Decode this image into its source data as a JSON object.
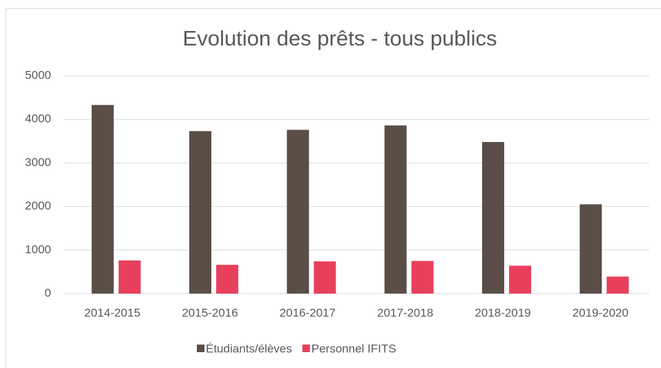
{
  "chart_data": {
    "type": "bar",
    "title": "Evolution des prêts - tous publics",
    "categories": [
      "2014-2015",
      "2015-2016",
      "2016-2017",
      "2017-2018",
      "2018-2019",
      "2019-2020"
    ],
    "series": [
      {
        "name": "Étudiants/élèves",
        "color": "#5a4e47",
        "values": [
          4330,
          3730,
          3760,
          3860,
          3480,
          2050
        ]
      },
      {
        "name": "Personnel IFITS",
        "color": "#e8405c",
        "values": [
          760,
          660,
          740,
          750,
          640,
          390
        ]
      }
    ],
    "ylim": [
      0,
      5000
    ],
    "yticks": [
      0,
      1000,
      2000,
      3000,
      4000,
      5000
    ],
    "grid": true,
    "legend": "bottom"
  }
}
